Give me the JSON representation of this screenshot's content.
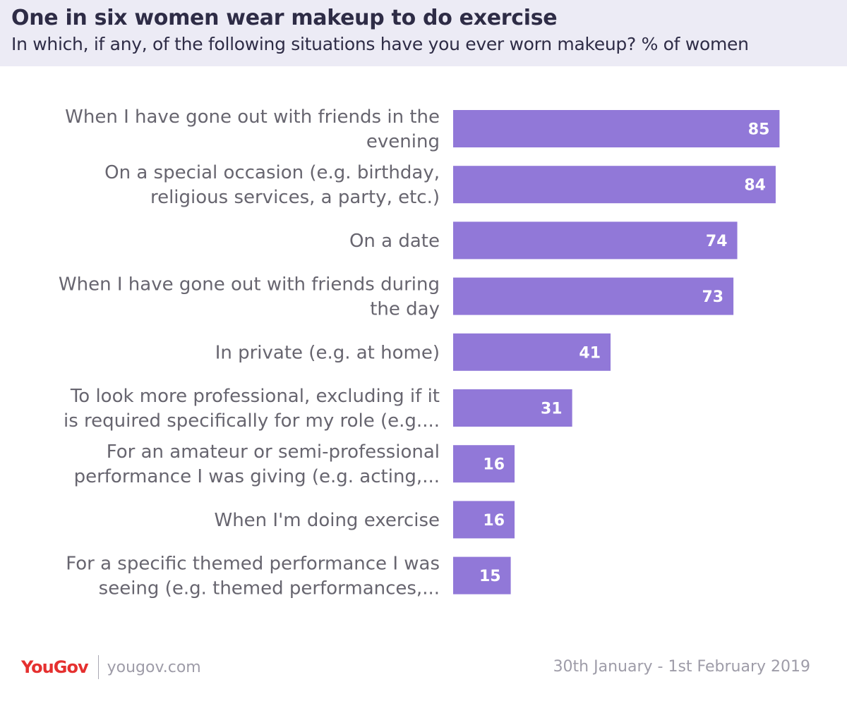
{
  "header": {
    "title": "One in six women wear makeup to do exercise",
    "subtitle": "In which, if any, of the following situations have you ever worn makeup? % of women"
  },
  "footer": {
    "logo": "YouGov",
    "site": "yougov.com",
    "date": "30th January - 1st February 2019"
  },
  "colors": {
    "bar": "#9178d8",
    "header_bg": "#ecebf5",
    "brand": "#e5302f"
  },
  "chart_data": {
    "type": "bar",
    "orientation": "horizontal",
    "title": "One in six women wear makeup to do exercise",
    "subtitle": "In which, if any, of the following situations have you ever worn makeup? % of women",
    "categories": [
      [
        "When I have gone out with friends in the",
        "evening"
      ],
      [
        "On a special occasion (e.g. birthday,",
        "religious services, a party, etc.)"
      ],
      [
        "On a date"
      ],
      [
        "When I have gone out with friends during",
        "the day"
      ],
      [
        "In private (e.g. at home)"
      ],
      [
        "To look more professional, excluding if it",
        "is required specifically for my role (e.g...."
      ],
      [
        "For an amateur or semi-professional",
        "performance I was giving (e.g. acting,..."
      ],
      [
        "When I'm doing exercise"
      ],
      [
        "For a specific themed performance I was",
        "seeing (e.g. themed performances,..."
      ]
    ],
    "values": [
      85,
      84,
      74,
      73,
      41,
      31,
      16,
      16,
      15
    ],
    "xlim": [
      0,
      100
    ],
    "grid": false,
    "data_labels": "inside-end"
  }
}
